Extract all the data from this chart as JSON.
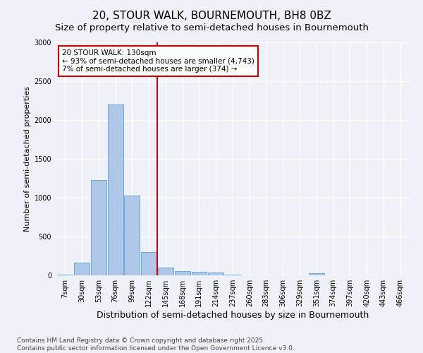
{
  "title": "20, STOUR WALK, BOURNEMOUTH, BH8 0BZ",
  "subtitle": "Size of property relative to semi-detached houses in Bournemouth",
  "xlabel": "Distribution of semi-detached houses by size in Bournemouth",
  "ylabel": "Number of semi-detached properties",
  "categories": [
    "7sqm",
    "30sqm",
    "53sqm",
    "76sqm",
    "99sqm",
    "122sqm",
    "145sqm",
    "168sqm",
    "191sqm",
    "214sqm",
    "237sqm",
    "260sqm",
    "283sqm",
    "306sqm",
    "329sqm",
    "351sqm",
    "374sqm",
    "397sqm",
    "420sqm",
    "443sqm",
    "466sqm"
  ],
  "values": [
    10,
    160,
    1230,
    2200,
    1030,
    300,
    100,
    55,
    50,
    35,
    5,
    2,
    1,
    0,
    0,
    25,
    0,
    0,
    0,
    0,
    0
  ],
  "bar_color": "#aec6e8",
  "bar_edge_color": "#5a9fd4",
  "vline_color": "#cc0000",
  "annotation_box_text": "20 STOUR WALK: 130sqm\n← 93% of semi-detached houses are smaller (4,743)\n7% of semi-detached houses are larger (374) →",
  "annotation_box_color": "#cc0000",
  "ylim": [
    0,
    3000
  ],
  "yticks": [
    0,
    500,
    1000,
    1500,
    2000,
    2500,
    3000
  ],
  "background_color": "#eef2f8",
  "grid_color": "#ffffff",
  "footer_line1": "Contains HM Land Registry data © Crown copyright and database right 2025.",
  "footer_line2": "Contains public sector information licensed under the Open Government Licence v3.0.",
  "title_fontsize": 11,
  "subtitle_fontsize": 9.5,
  "xlabel_fontsize": 9,
  "ylabel_fontsize": 8,
  "footer_fontsize": 6.5,
  "tick_fontsize": 7,
  "ann_fontsize": 7.5
}
